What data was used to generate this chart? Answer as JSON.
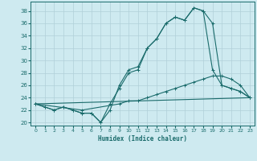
{
  "xlabel": "Humidex (Indice chaleur)",
  "background_color": "#ceeaf0",
  "grid_color": "#b0d0d8",
  "line_color": "#1a6b6b",
  "xlim": [
    -0.5,
    23.5
  ],
  "ylim": [
    19.5,
    39.5
  ],
  "xticks": [
    0,
    1,
    2,
    3,
    4,
    5,
    6,
    7,
    8,
    9,
    10,
    11,
    12,
    13,
    14,
    15,
    16,
    17,
    18,
    19,
    20,
    21,
    22,
    23
  ],
  "yticks": [
    20,
    22,
    24,
    26,
    28,
    30,
    32,
    34,
    36,
    38
  ],
  "line1_x": [
    0,
    1,
    2,
    3,
    4,
    5,
    6,
    7,
    8,
    9,
    10,
    11,
    12,
    13,
    14,
    15,
    16,
    17,
    18,
    19,
    20,
    21,
    22,
    23
  ],
  "line1_y": [
    23,
    22.5,
    22,
    22.5,
    22,
    21.5,
    21.5,
    20,
    22,
    26,
    28.5,
    29,
    32,
    33.5,
    36,
    37,
    36.5,
    38.5,
    38,
    28.5,
    26,
    25.5,
    25,
    24
  ],
  "line2_x": [
    0,
    1,
    2,
    3,
    4,
    5,
    6,
    7,
    8,
    9,
    10,
    11,
    12,
    13,
    14,
    15,
    16,
    17,
    18,
    19,
    20,
    21,
    22,
    23
  ],
  "line2_y": [
    23,
    22.5,
    22,
    22.5,
    22,
    21.5,
    21.5,
    20,
    23,
    25.5,
    28,
    28.5,
    32,
    33.5,
    36,
    37,
    36.5,
    38.5,
    38,
    36,
    26,
    25.5,
    25,
    24
  ],
  "line3_x": [
    0,
    5,
    9,
    10,
    11,
    12,
    13,
    14,
    15,
    16,
    17,
    18,
    19,
    20,
    21,
    22,
    23
  ],
  "line3_y": [
    23,
    22,
    23,
    23.5,
    23.5,
    24,
    24.5,
    25,
    25.5,
    26,
    26.5,
    27,
    27.5,
    27.5,
    27,
    26,
    24
  ],
  "line4_x": [
    0,
    23
  ],
  "line4_y": [
    23,
    24
  ]
}
